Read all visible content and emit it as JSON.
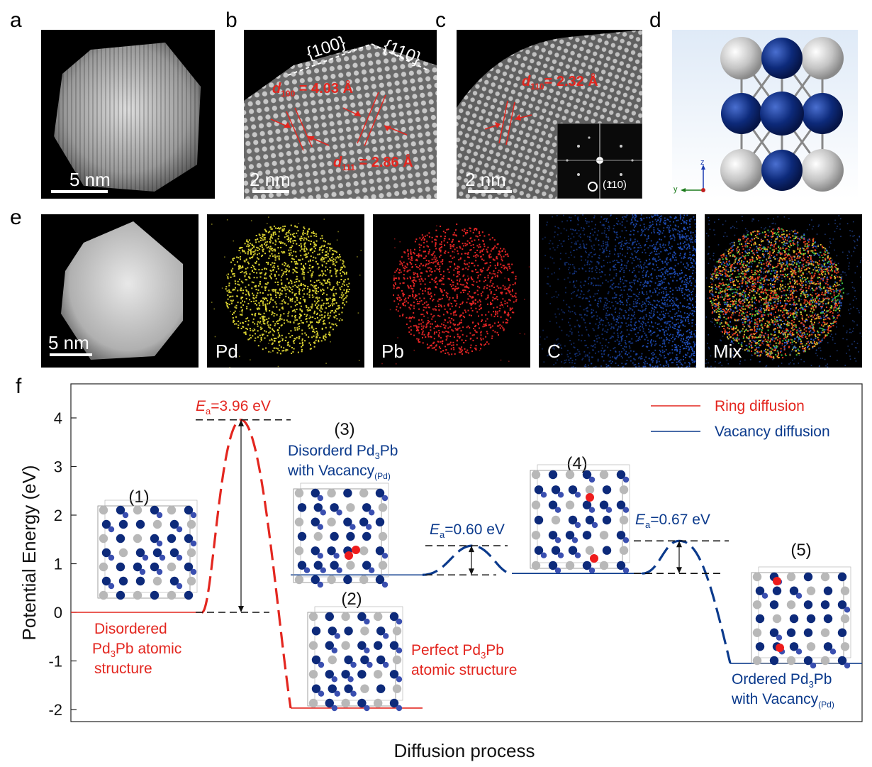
{
  "panels": {
    "a": {
      "letter": "a",
      "scale": "5 nm"
    },
    "b": {
      "letter": "b",
      "scale": "2 nm",
      "facet1": "{100}",
      "facet2": "{110}",
      "d100_sym": "d",
      "d100_sub": "100",
      "d100_val": " = 4.03 Å",
      "d111_sym": "d",
      "d111_sub": "111",
      "d111_val": " = 2.86 Å"
    },
    "c": {
      "letter": "c",
      "scale": "2 nm",
      "d110_sym": "d",
      "d110_sub": "110",
      "d110_val": "= 2.32 Å",
      "fft_label": "(110)"
    },
    "d": {
      "letter": "d",
      "axis_z": "z",
      "axis_y": "y"
    },
    "e": {
      "letter": "e",
      "scale": "5 nm",
      "maps": [
        "Pd",
        "Pb",
        "C",
        "Mix"
      ]
    },
    "f": {
      "letter": "f"
    }
  },
  "colors": {
    "ring": "#e3261f",
    "vacancy": "#0b3a8c",
    "pd_atom": "#0d2a7a",
    "pb_atom": "#b8b8b8",
    "pd_map": "#d8d030",
    "pb_map": "#e02424",
    "c_map": "#2050c0"
  },
  "chart_data": {
    "type": "line",
    "ylabel": "Potential Energy (eV)",
    "xlabel": "Diffusion process",
    "ylim": [
      -2,
      4
    ],
    "yticks": [
      "4",
      "3",
      "2",
      "1",
      "0",
      "-1",
      "-2"
    ],
    "legend": {
      "placement": "top-right",
      "entries": [
        "Ring diffusion",
        "Vacancy diffusion"
      ]
    },
    "series": [
      {
        "name": "Ring diffusion",
        "levels": [
          0,
          3.96,
          -1.97
        ]
      },
      {
        "name": "Vacancy diffusion",
        "levels": [
          0.77,
          1.37,
          0.8,
          1.47,
          -1.05
        ]
      }
    ],
    "barriers": [
      {
        "E": "E",
        "sub": "a",
        "text": "=3.96 eV",
        "value": 3.96
      },
      {
        "E": "E",
        "sub": "a",
        "text": "=0.60 eV",
        "value": 0.6
      },
      {
        "E": "E",
        "sub": "a",
        "text": "=0.67 eV",
        "value": 0.67
      }
    ],
    "states": [
      {
        "num": "(1)",
        "line1": "Disordered",
        "line2a": "Pd",
        "line2sub": "3",
        "line2b": "Pb atomic",
        "line3": "structure"
      },
      {
        "num": "(2)",
        "line1a": "Perfect Pd",
        "line1sub": "3",
        "line1b": "Pb",
        "line2": "atomic structure"
      },
      {
        "num": "(3)",
        "line1a": "Disorderd Pd",
        "line1sub": "3",
        "line1b": "Pb",
        "line2a": "with Vacancy",
        "line2sub": "(Pd)"
      },
      {
        "num": "(4)"
      },
      {
        "num": "(5)",
        "line1a": "Ordered Pd",
        "line1sub": "3",
        "line1b": "Pb",
        "line2a": "with Vacancy",
        "line2sub": "(Pd)"
      }
    ]
  }
}
